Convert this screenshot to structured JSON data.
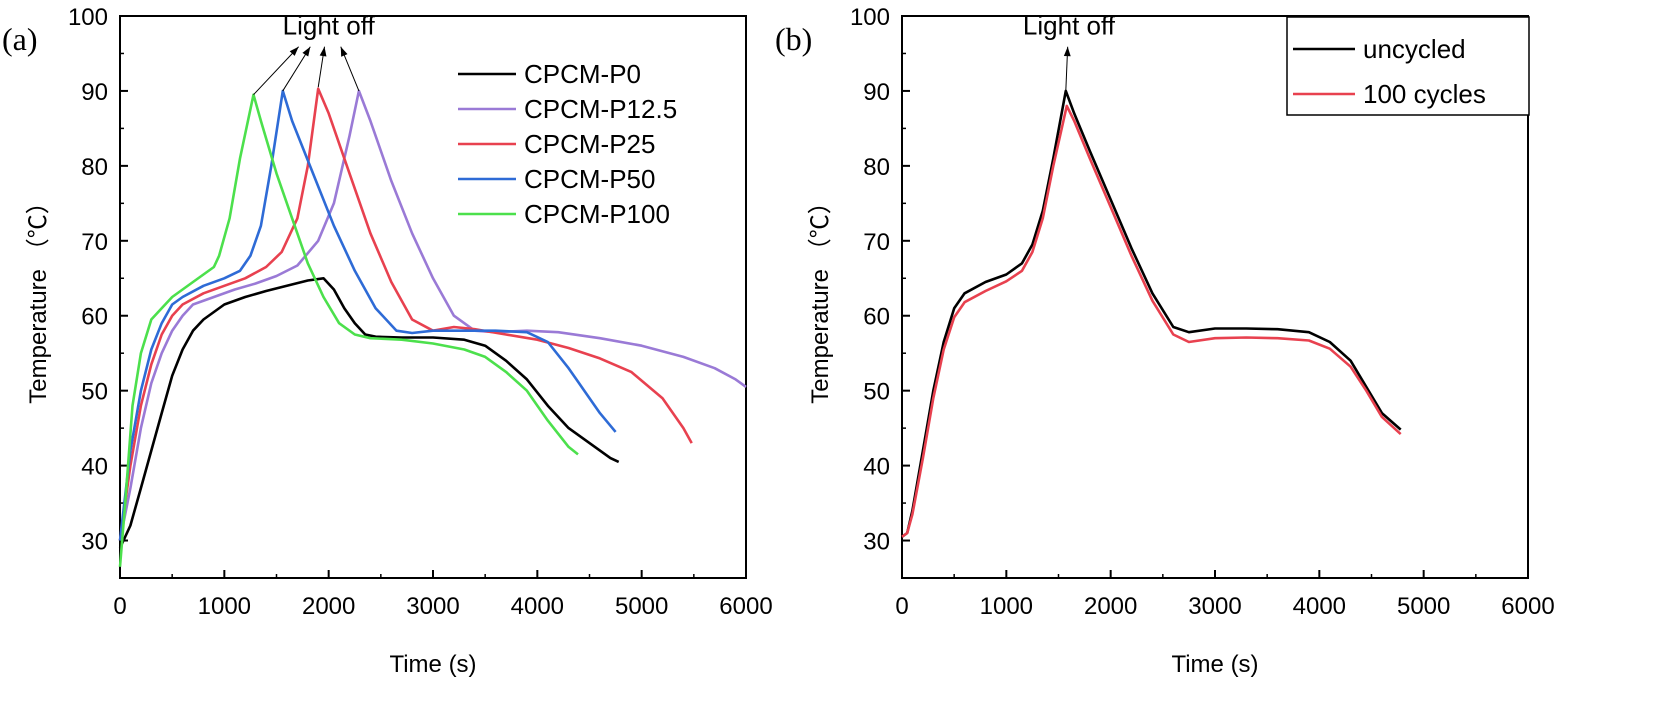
{
  "chart_data": [
    {
      "panel_label": "(a)",
      "type": "line",
      "xlabel": "Time (s)",
      "ylabel": "Temperature （℃）",
      "xlim": [
        0,
        6000
      ],
      "ylim": [
        25,
        100
      ],
      "xticks": [
        0,
        1000,
        2000,
        3000,
        4000,
        5000,
        6000
      ],
      "yticks": [
        30,
        40,
        50,
        60,
        70,
        80,
        90,
        100
      ],
      "legend_position": "top-right",
      "annotation": {
        "text": "Light off",
        "label_x": 2000,
        "label_y": 97.5,
        "targets": [
          [
            1280,
            89.5
          ],
          [
            1560,
            90
          ],
          [
            1900,
            90.5
          ],
          [
            2290,
            90
          ]
        ]
      },
      "series": [
        {
          "name": "CPCM-P0",
          "color": "#000000",
          "points": [
            [
              0,
              29
            ],
            [
              100,
              32
            ],
            [
              200,
              37
            ],
            [
              300,
              42
            ],
            [
              400,
              47
            ],
            [
              500,
              52
            ],
            [
              600,
              55.5
            ],
            [
              700,
              58
            ],
            [
              800,
              59.5
            ],
            [
              900,
              60.5
            ],
            [
              1000,
              61.5
            ],
            [
              1200,
              62.5
            ],
            [
              1400,
              63.3
            ],
            [
              1600,
              64
            ],
            [
              1800,
              64.7
            ],
            [
              1950,
              65
            ],
            [
              2050,
              63.5
            ],
            [
              2150,
              61
            ],
            [
              2250,
              59
            ],
            [
              2350,
              57.5
            ],
            [
              2450,
              57.2
            ],
            [
              2700,
              57.1
            ],
            [
              3000,
              57.1
            ],
            [
              3300,
              56.8
            ],
            [
              3500,
              56
            ],
            [
              3700,
              54
            ],
            [
              3900,
              51.5
            ],
            [
              4100,
              48
            ],
            [
              4300,
              45
            ],
            [
              4500,
              43
            ],
            [
              4700,
              41
            ],
            [
              4780,
              40.5
            ]
          ]
        },
        {
          "name": "CPCM-P12.5",
          "color": "#9A7AD6",
          "points": [
            [
              0,
              30
            ],
            [
              100,
              37
            ],
            [
              200,
              45
            ],
            [
              300,
              51
            ],
            [
              400,
              55
            ],
            [
              500,
              58
            ],
            [
              600,
              60
            ],
            [
              700,
              61.5
            ],
            [
              900,
              62.5
            ],
            [
              1100,
              63.5
            ],
            [
              1300,
              64.3
            ],
            [
              1500,
              65.3
            ],
            [
              1700,
              66.7
            ],
            [
              1900,
              70
            ],
            [
              2050,
              75
            ],
            [
              2200,
              84
            ],
            [
              2290,
              90
            ],
            [
              2400,
              86
            ],
            [
              2600,
              78
            ],
            [
              2800,
              71
            ],
            [
              3000,
              65
            ],
            [
              3200,
              60
            ],
            [
              3400,
              58
            ],
            [
              3600,
              57.8
            ],
            [
              3900,
              58
            ],
            [
              4200,
              57.8
            ],
            [
              4600,
              57
            ],
            [
              5000,
              56
            ],
            [
              5400,
              54.5
            ],
            [
              5700,
              53
            ],
            [
              5900,
              51.5
            ],
            [
              6000,
              50.5
            ]
          ]
        },
        {
          "name": "CPCM-P25",
          "color": "#E8414F",
          "points": [
            [
              0,
              30
            ],
            [
              100,
              40
            ],
            [
              200,
              48
            ],
            [
              300,
              53.5
            ],
            [
              400,
              57.5
            ],
            [
              500,
              60
            ],
            [
              600,
              61.5
            ],
            [
              800,
              63
            ],
            [
              1000,
              64
            ],
            [
              1200,
              65
            ],
            [
              1400,
              66.5
            ],
            [
              1550,
              68.5
            ],
            [
              1700,
              73
            ],
            [
              1800,
              80
            ],
            [
              1900,
              90.3
            ],
            [
              2000,
              87
            ],
            [
              2200,
              79
            ],
            [
              2400,
              71
            ],
            [
              2600,
              64.5
            ],
            [
              2800,
              59.5
            ],
            [
              3000,
              58
            ],
            [
              3200,
              58.5
            ],
            [
              3400,
              58.2
            ],
            [
              3700,
              57.5
            ],
            [
              4000,
              56.8
            ],
            [
              4300,
              55.7
            ],
            [
              4600,
              54.3
            ],
            [
              4900,
              52.5
            ],
            [
              5200,
              49
            ],
            [
              5400,
              45
            ],
            [
              5480,
              43
            ]
          ]
        },
        {
          "name": "CPCM-P50",
          "color": "#2E6BD6",
          "points": [
            [
              0,
              30
            ],
            [
              100,
              42
            ],
            [
              200,
              50
            ],
            [
              300,
              55.5
            ],
            [
              400,
              59
            ],
            [
              500,
              61.5
            ],
            [
              600,
              62.5
            ],
            [
              800,
              64
            ],
            [
              1000,
              65
            ],
            [
              1150,
              66
            ],
            [
              1250,
              68
            ],
            [
              1350,
              72
            ],
            [
              1450,
              80
            ],
            [
              1560,
              90
            ],
            [
              1650,
              86
            ],
            [
              1850,
              79
            ],
            [
              2050,
              72
            ],
            [
              2250,
              66
            ],
            [
              2450,
              61
            ],
            [
              2650,
              58
            ],
            [
              2800,
              57.7
            ],
            [
              3000,
              58
            ],
            [
              3300,
              58
            ],
            [
              3600,
              58
            ],
            [
              3900,
              57.8
            ],
            [
              4100,
              56.5
            ],
            [
              4300,
              53
            ],
            [
              4450,
              50
            ],
            [
              4600,
              47
            ],
            [
              4750,
              44.5
            ]
          ]
        },
        {
          "name": "CPCM-P100",
          "color": "#4CE04C",
          "points": [
            [
              0,
              26.5
            ],
            [
              50,
              35
            ],
            [
              120,
              48
            ],
            [
              200,
              55
            ],
            [
              300,
              59.5
            ],
            [
              400,
              61
            ],
            [
              500,
              62.5
            ],
            [
              700,
              64.5
            ],
            [
              900,
              66.5
            ],
            [
              950,
              68
            ],
            [
              1050,
              73
            ],
            [
              1150,
              81
            ],
            [
              1280,
              89.5
            ],
            [
              1350,
              86
            ],
            [
              1500,
              79
            ],
            [
              1650,
              73
            ],
            [
              1800,
              67
            ],
            [
              1950,
              62.5
            ],
            [
              2100,
              59
            ],
            [
              2250,
              57.5
            ],
            [
              2400,
              57
            ],
            [
              2700,
              56.8
            ],
            [
              3000,
              56.3
            ],
            [
              3300,
              55.5
            ],
            [
              3500,
              54.5
            ],
            [
              3700,
              52.5
            ],
            [
              3900,
              50
            ],
            [
              4100,
              46
            ],
            [
              4300,
              42.5
            ],
            [
              4390,
              41.5
            ]
          ]
        }
      ]
    },
    {
      "panel_label": "(b)",
      "type": "line",
      "xlabel": "Time (s)",
      "ylabel": "Temperature （℃）",
      "xlim": [
        0,
        6000
      ],
      "ylim": [
        25,
        100
      ],
      "xticks": [
        0,
        1000,
        2000,
        3000,
        4000,
        5000,
        6000
      ],
      "yticks": [
        30,
        40,
        50,
        60,
        70,
        80,
        90,
        100
      ],
      "legend_position": "top-right",
      "annotation": {
        "text": "Light off",
        "label_x": 1600,
        "label_y": 97.5,
        "targets": [
          [
            1570,
            90
          ]
        ]
      },
      "series": [
        {
          "name": "uncycled",
          "color": "#000000",
          "points": [
            [
              0,
              30.5
            ],
            [
              50,
              31
            ],
            [
              100,
              34
            ],
            [
              200,
              42
            ],
            [
              300,
              50
            ],
            [
              400,
              56.5
            ],
            [
              500,
              61
            ],
            [
              600,
              63
            ],
            [
              800,
              64.5
            ],
            [
              1000,
              65.5
            ],
            [
              1150,
              67
            ],
            [
              1250,
              69.5
            ],
            [
              1350,
              74
            ],
            [
              1450,
              81
            ],
            [
              1570,
              90
            ],
            [
              1650,
              87
            ],
            [
              1800,
              82
            ],
            [
              2000,
              75.5
            ],
            [
              2200,
              69
            ],
            [
              2400,
              63
            ],
            [
              2600,
              58.5
            ],
            [
              2750,
              57.8
            ],
            [
              3000,
              58.3
            ],
            [
              3300,
              58.3
            ],
            [
              3600,
              58.2
            ],
            [
              3900,
              57.8
            ],
            [
              4100,
              56.5
            ],
            [
              4300,
              54
            ],
            [
              4450,
              50.5
            ],
            [
              4600,
              47
            ],
            [
              4780,
              44.8
            ]
          ]
        },
        {
          "name": "100 cycles",
          "color": "#E8414F",
          "points": [
            [
              0,
              30.5
            ],
            [
              50,
              31
            ],
            [
              100,
              33.5
            ],
            [
              200,
              41
            ],
            [
              300,
              49
            ],
            [
              400,
              55.5
            ],
            [
              500,
              59.8
            ],
            [
              600,
              61.8
            ],
            [
              800,
              63.3
            ],
            [
              1000,
              64.6
            ],
            [
              1150,
              66
            ],
            [
              1250,
              68.5
            ],
            [
              1350,
              73
            ],
            [
              1450,
              80
            ],
            [
              1580,
              88
            ],
            [
              1650,
              86
            ],
            [
              1800,
              81
            ],
            [
              2000,
              74.5
            ],
            [
              2200,
              68
            ],
            [
              2400,
              62
            ],
            [
              2600,
              57.5
            ],
            [
              2750,
              56.5
            ],
            [
              3000,
              57
            ],
            [
              3300,
              57.1
            ],
            [
              3600,
              57
            ],
            [
              3900,
              56.7
            ],
            [
              4100,
              55.6
            ],
            [
              4300,
              53.2
            ],
            [
              4450,
              50
            ],
            [
              4600,
              46.5
            ],
            [
              4780,
              44.2
            ]
          ]
        }
      ]
    }
  ]
}
